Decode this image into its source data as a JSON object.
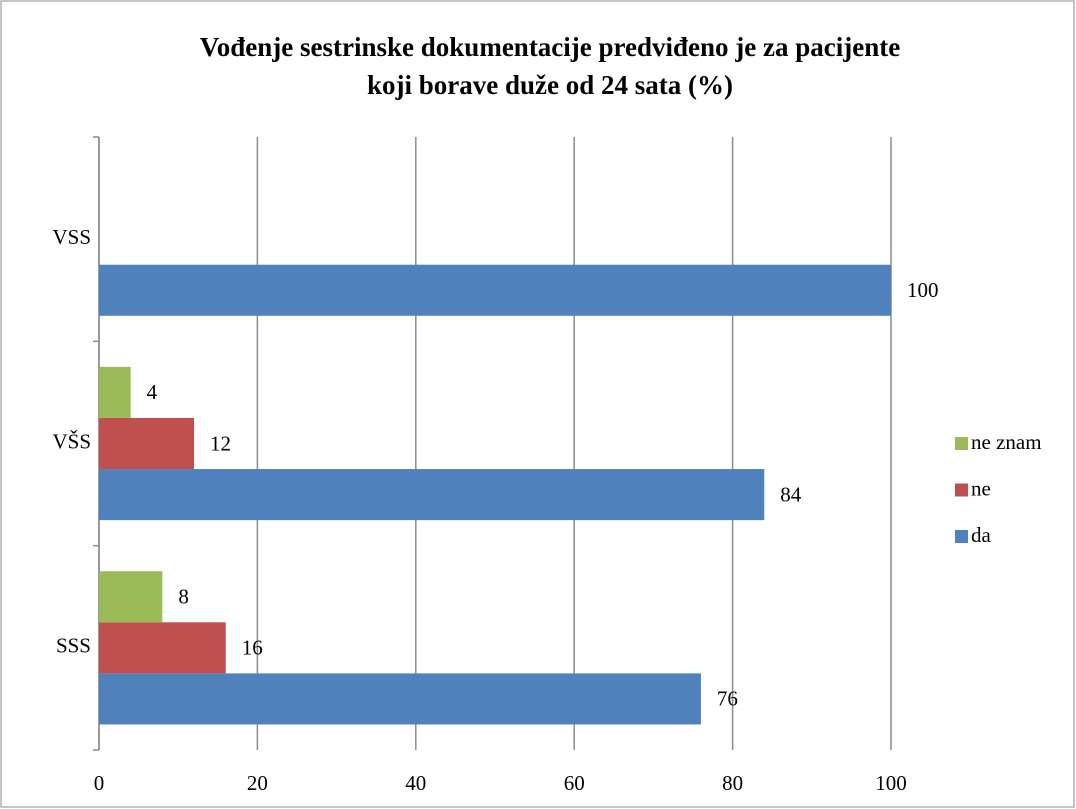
{
  "chart_data": {
    "type": "hbar",
    "title": [
      "Vođenje sestrinske dokumentacije predviđeno je za pacijente",
      "koji borave duže od 24 sata (%)"
    ],
    "categories": [
      "SSS",
      "VŠS",
      "VSS"
    ],
    "series": [
      {
        "name": "da",
        "color": "#4f81bd",
        "values": [
          76,
          84,
          100
        ]
      },
      {
        "name": "ne",
        "color": "#c0504d",
        "values": [
          16,
          12,
          null
        ]
      },
      {
        "name": "ne znam",
        "color": "#9bbb59",
        "values": [
          8,
          4,
          null
        ]
      }
    ],
    "xlim": [
      0,
      100
    ],
    "xticks": [
      0,
      20,
      40,
      60,
      80,
      100
    ],
    "grid": true,
    "legend": "right"
  }
}
